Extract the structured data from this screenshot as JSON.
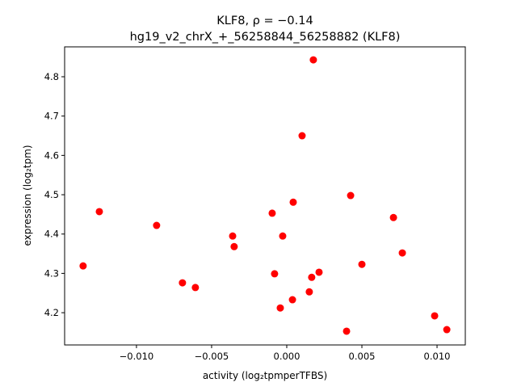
{
  "chart_data": {
    "type": "scatter",
    "title_line1": "KLF8, ρ = −0.14",
    "title_line2": "hg19_v2_chrX_+_56258844_56258882 (KLF8)",
    "xlabel": "activity (log₂tpmperTFBS)",
    "ylabel": "expression (log₂tpm)",
    "xlim": [
      -0.01478,
      0.01188
    ],
    "ylim": [
      4.118,
      4.876
    ],
    "xticks": [
      -0.01,
      -0.005,
      0.0,
      0.005,
      0.01
    ],
    "xtick_labels": [
      "−0.010",
      "−0.005",
      "0.000",
      "0.005",
      "0.010"
    ],
    "yticks": [
      4.2,
      4.3,
      4.4,
      4.5,
      4.6,
      4.7,
      4.8
    ],
    "ytick_labels": [
      "4.2",
      "4.3",
      "4.4",
      "4.5",
      "4.6",
      "4.7",
      "4.8"
    ],
    "grid": false,
    "marker_color": "#ff0000",
    "points": [
      [
        -0.01355,
        4.319
      ],
      [
        -0.01247,
        4.457
      ],
      [
        -0.00866,
        4.422
      ],
      [
        -0.00694,
        4.276
      ],
      [
        -0.00608,
        4.264
      ],
      [
        -0.0036,
        4.395
      ],
      [
        -0.0035,
        4.368
      ],
      [
        -0.00097,
        4.453
      ],
      [
        -0.00081,
        4.299
      ],
      [
        -0.00043,
        4.212
      ],
      [
        -0.00027,
        4.395
      ],
      [
        0.00043,
        4.481
      ],
      [
        0.00038,
        4.233
      ],
      [
        0.00102,
        4.65
      ],
      [
        0.0015,
        4.253
      ],
      [
        0.00166,
        4.29
      ],
      [
        0.00177,
        4.843
      ],
      [
        0.00215,
        4.303
      ],
      [
        0.00398,
        4.153
      ],
      [
        0.00425,
        4.498
      ],
      [
        0.005,
        4.323
      ],
      [
        0.0071,
        4.442
      ],
      [
        0.00769,
        4.352
      ],
      [
        0.00984,
        4.192
      ],
      [
        0.01065,
        4.157
      ]
    ]
  }
}
